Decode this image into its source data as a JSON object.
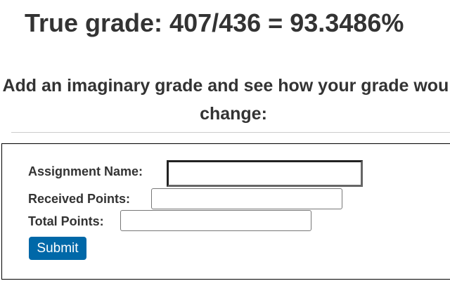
{
  "header": {
    "true_grade": "True grade: 407/436 = 93.3486%",
    "subtitle": "Add an imaginary grade and see how your grade would change:"
  },
  "form": {
    "assignment_name_label": "Assignment Name:",
    "assignment_name_value": "",
    "received_points_label": "Received Points:",
    "received_points_value": "",
    "total_points_label": "Total Points:",
    "total_points_value": "",
    "submit_label": "Submit"
  },
  "colors": {
    "submit_button": "#0068a8",
    "text": "#333333"
  }
}
